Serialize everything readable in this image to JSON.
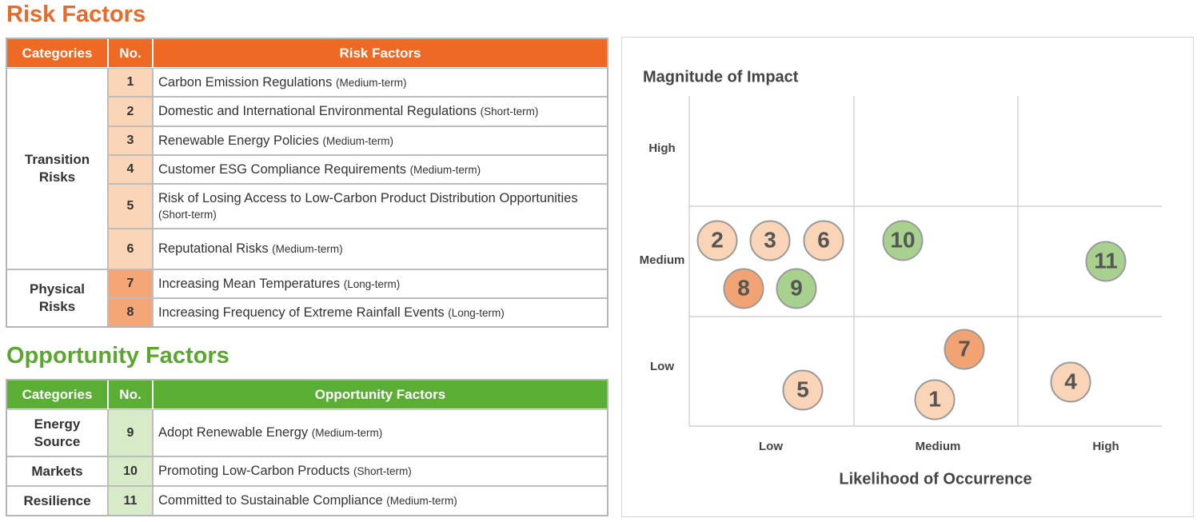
{
  "risk_section": {
    "title": "Risk Factors",
    "table": {
      "header": [
        "Categories",
        "No.",
        "Risk Factors"
      ],
      "groups": [
        {
          "category": "Transition Risks",
          "items": [
            {
              "no": 1,
              "factor": "Carbon Emission Regulations",
              "term": "(Medium-term)"
            },
            {
              "no": 2,
              "factor": "Domestic and International Environmental Regulations",
              "term": "(Short-term)"
            },
            {
              "no": 3,
              "factor": "Renewable Energy Policies",
              "term": "(Medium-term)"
            },
            {
              "no": 4,
              "factor": "Customer ESG Compliance Requirements",
              "term": "(Medium-term)"
            },
            {
              "no": 5,
              "factor": "Risk of Losing Access to Low-Carbon Product Distribution Opportunities",
              "term": "(Short-term)"
            },
            {
              "no": 6,
              "factor": "Reputational Risks",
              "term": "(Medium-term)"
            }
          ]
        },
        {
          "category": "Physical Risks",
          "items": [
            {
              "no": 7,
              "factor": "Increasing Mean Temperatures",
              "term": "(Long-term)"
            },
            {
              "no": 8,
              "factor": "Increasing Frequency of Extreme Rainfall Events",
              "term": "(Long-term)"
            }
          ]
        }
      ]
    }
  },
  "opportunity_section": {
    "title": "Opportunity Factors",
    "table": {
      "header": [
        "Categories",
        "No.",
        "Opportunity Factors"
      ],
      "groups": [
        {
          "category": "Energy Source",
          "items": [
            {
              "no": 9,
              "factor": "Adopt Renewable Energy",
              "term": "(Medium-term)"
            }
          ]
        },
        {
          "category": "Markets",
          "items": [
            {
              "no": 10,
              "factor": "Promoting Low-Carbon Products",
              "term": "(Short-term)"
            }
          ]
        },
        {
          "category": "Resilience",
          "items": [
            {
              "no": 11,
              "factor": "Committed to Sustainable Compliance",
              "term": "(Medium-term)"
            }
          ]
        }
      ]
    }
  },
  "matrix": {
    "y_title": "Magnitude of Impact",
    "x_title": "Likelihood of Occurrence",
    "y_levels": [
      "High",
      "Medium",
      "Low"
    ],
    "x_levels": [
      "Low",
      "Medium",
      "High"
    ],
    "bubbles": [
      {
        "label": 1
      },
      {
        "label": 2
      },
      {
        "label": 3
      },
      {
        "label": 4
      },
      {
        "label": 5
      },
      {
        "label": 6
      },
      {
        "label": 7
      },
      {
        "label": 8
      },
      {
        "label": 9
      },
      {
        "label": 10
      },
      {
        "label": 11
      }
    ]
  }
}
